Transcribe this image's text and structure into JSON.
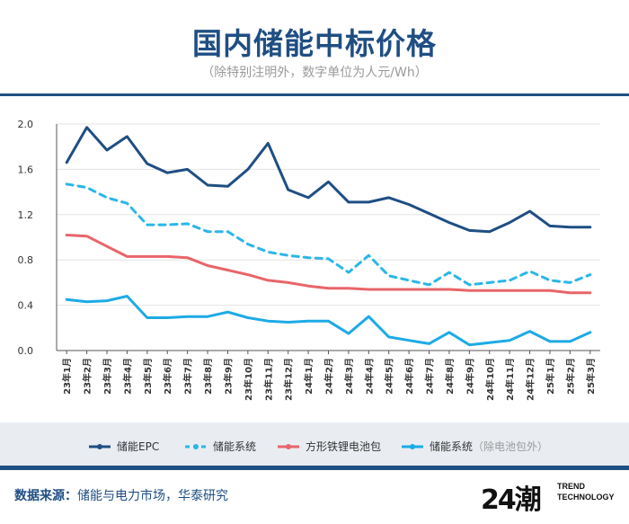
{
  "header": {
    "title": "国内储能中标价格",
    "subtitle": "（除特别注明外，数字单位为人元/Wh）"
  },
  "chart_data": {
    "type": "line",
    "categories": [
      "23年1月",
      "23年2月",
      "23年3月",
      "23年4月",
      "23年5月",
      "23年6月",
      "23年7月",
      "23年8月",
      "23年9月",
      "23年10月",
      "23年11月",
      "23年12月",
      "24年1月",
      "24年2月",
      "24年3月",
      "24年4月",
      "24年5月",
      "24年6月",
      "24年7月",
      "24年8月",
      "24年9月",
      "24年10月",
      "24年11月",
      "24年12月",
      "25年1月",
      "25年2月",
      "25年3月"
    ],
    "ylim": [
      0,
      2.0
    ],
    "yticks": [
      "0.0",
      "0.4",
      "0.8",
      "1.2",
      "1.6",
      "2.0"
    ],
    "series": [
      {
        "name": "储能EPC",
        "color": "#1f4e83",
        "dash": false,
        "values": [
          1.66,
          1.97,
          1.77,
          1.89,
          1.65,
          1.57,
          1.6,
          1.46,
          1.45,
          1.6,
          1.83,
          1.42,
          1.35,
          1.49,
          1.31,
          1.31,
          1.35,
          1.29,
          1.21,
          1.13,
          1.06,
          1.05,
          1.13,
          1.23,
          1.1,
          1.09,
          1.09
        ]
      },
      {
        "name": "储能系统",
        "color": "#2bb6e8",
        "dash": true,
        "values": [
          1.47,
          1.44,
          1.35,
          1.3,
          1.11,
          1.11,
          1.12,
          1.05,
          1.05,
          0.94,
          0.87,
          0.84,
          0.82,
          0.81,
          0.69,
          0.84,
          0.66,
          0.62,
          0.58,
          0.69,
          0.58,
          0.6,
          0.62,
          0.7,
          0.62,
          0.6,
          0.67
        ]
      },
      {
        "name": "方形铁锂电池包",
        "color": "#e8656a",
        "dash": false,
        "values": [
          1.02,
          1.01,
          0.92,
          0.83,
          0.83,
          0.83,
          0.82,
          0.75,
          0.71,
          0.67,
          0.62,
          0.6,
          0.57,
          0.55,
          0.55,
          0.54,
          0.54,
          0.54,
          0.54,
          0.54,
          0.53,
          0.53,
          0.53,
          0.53,
          0.53,
          0.51,
          0.51
        ]
      },
      {
        "name": "储能系统",
        "note": "（除电池包外）",
        "color": "#1daae6",
        "dash": false,
        "values": [
          0.45,
          0.43,
          0.44,
          0.48,
          0.29,
          0.29,
          0.3,
          0.3,
          0.34,
          0.29,
          0.26,
          0.25,
          0.26,
          0.26,
          0.15,
          0.3,
          0.12,
          0.09,
          0.06,
          0.16,
          0.05,
          0.07,
          0.09,
          0.17,
          0.08,
          0.08,
          0.16
        ]
      }
    ]
  },
  "footer": {
    "source_label": "数据来源：",
    "source_text": "储能与电力市场，华泰研究",
    "logo_number": "24潮",
    "logo_tag_line1": "TREND",
    "logo_tag_line2": "TECHNOLOGY"
  }
}
